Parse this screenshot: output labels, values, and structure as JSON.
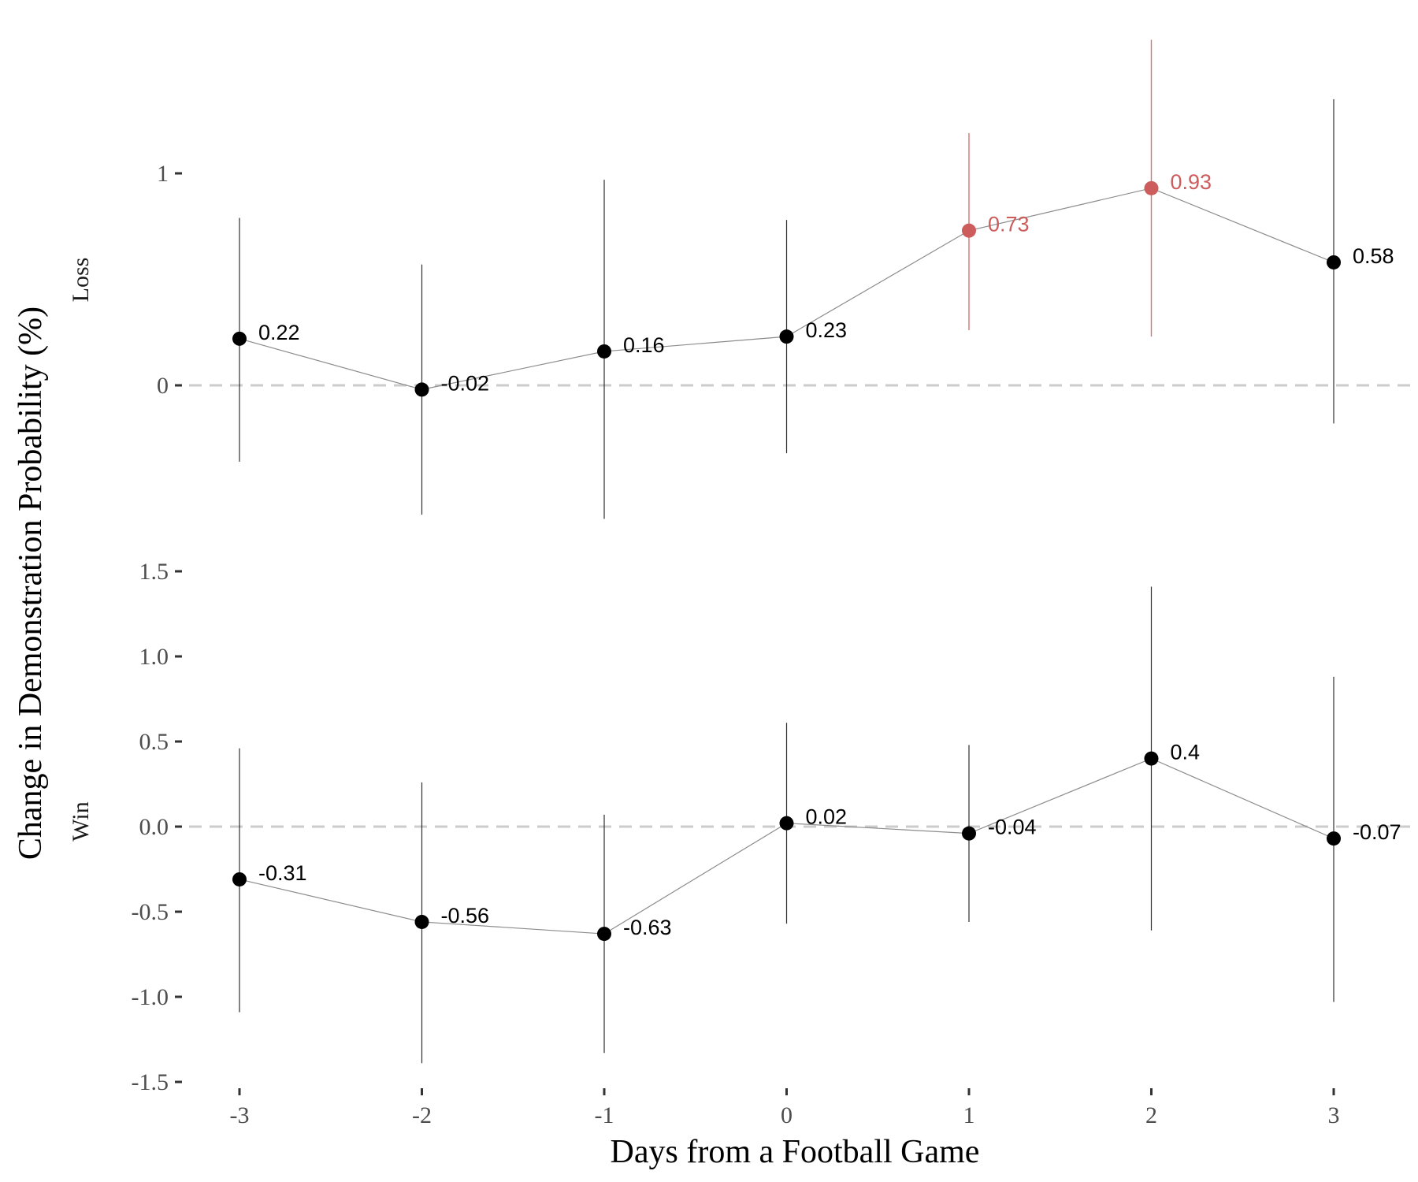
{
  "chart_data": {
    "type": "line",
    "xlabel": "Days from a Football Game",
    "ylabel": "Change in Demonstration Probability (%)",
    "x": [
      -3,
      -2,
      -1,
      0,
      1,
      2,
      3
    ],
    "x_tick_labels": [
      "-3",
      "-2",
      "-1",
      "0",
      "1",
      "2",
      "3"
    ],
    "grid": false,
    "reference_line": 0,
    "colors": {
      "significant": "#cd5c5c",
      "default": "#000000",
      "line": "#8c8c8c",
      "reference": "#cccccc"
    },
    "panels": [
      {
        "name": "Loss",
        "ylim": [
          -0.45,
          1.6
        ],
        "y_ticks": [
          0,
          1
        ],
        "y_tick_labels": [
          "0",
          "1"
        ],
        "values": [
          0.22,
          -0.02,
          0.16,
          0.23,
          0.73,
          0.93,
          0.58
        ],
        "labels": [
          "0.22",
          "-0.02",
          "0.16",
          "0.23",
          "0.73",
          "0.93",
          "0.58"
        ],
        "ci_lower": [
          -0.36,
          -0.61,
          -0.63,
          -0.32,
          0.26,
          0.23,
          -0.18
        ],
        "ci_upper": [
          0.79,
          0.57,
          0.97,
          0.78,
          1.19,
          1.63,
          1.35
        ],
        "significant": [
          false,
          false,
          false,
          false,
          true,
          true,
          false
        ]
      },
      {
        "name": "Win",
        "ylim": [
          -1.5,
          1.5
        ],
        "y_ticks": [
          -1.5,
          -1.0,
          -0.5,
          0.0,
          0.5,
          1.0,
          1.5
        ],
        "y_tick_labels": [
          "-1.5",
          "-1.0",
          "-0.5",
          "0.0",
          "0.5",
          "1.0",
          "1.5"
        ],
        "values": [
          -0.31,
          -0.56,
          -0.63,
          0.02,
          -0.04,
          0.4,
          -0.07
        ],
        "labels": [
          "-0.31",
          "-0.56",
          "-0.63",
          "0.02",
          "-0.04",
          "0.4",
          "-0.07"
        ],
        "ci_lower": [
          -1.09,
          -1.39,
          -1.33,
          -0.57,
          -0.56,
          -0.61,
          -1.03
        ],
        "ci_upper": [
          0.46,
          0.26,
          0.07,
          0.61,
          0.48,
          1.41,
          0.88
        ],
        "significant": [
          false,
          false,
          false,
          false,
          false,
          false,
          false
        ]
      }
    ]
  }
}
